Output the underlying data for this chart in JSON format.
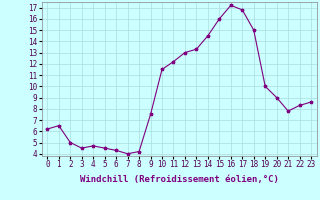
{
  "x": [
    0,
    1,
    2,
    3,
    4,
    5,
    6,
    7,
    8,
    9,
    10,
    11,
    12,
    13,
    14,
    15,
    16,
    17,
    18,
    19,
    20,
    21,
    22,
    23
  ],
  "y": [
    6.2,
    6.5,
    5.0,
    4.5,
    4.7,
    4.5,
    4.3,
    4.0,
    4.2,
    7.5,
    11.5,
    12.2,
    13.0,
    13.3,
    14.5,
    16.0,
    17.2,
    16.8,
    15.0,
    10.0,
    9.0,
    7.8,
    8.3,
    8.6
  ],
  "line_color": "#800080",
  "marker": "*",
  "marker_size": 2.5,
  "bg_color": "#ccffff",
  "grid_color": "#aadddd",
  "xlabel": "Windchill (Refroidissement éolien,°C)",
  "xlabel_fontsize": 6.5,
  "ylabel_ticks": [
    4,
    5,
    6,
    7,
    8,
    9,
    10,
    11,
    12,
    13,
    14,
    15,
    16,
    17
  ],
  "xlim": [
    -0.5,
    23.5
  ],
  "ylim": [
    3.8,
    17.5
  ],
  "tick_fontsize": 5.5,
  "line_width": 0.8,
  "fig_width": 3.2,
  "fig_height": 2.0,
  "dpi": 100
}
